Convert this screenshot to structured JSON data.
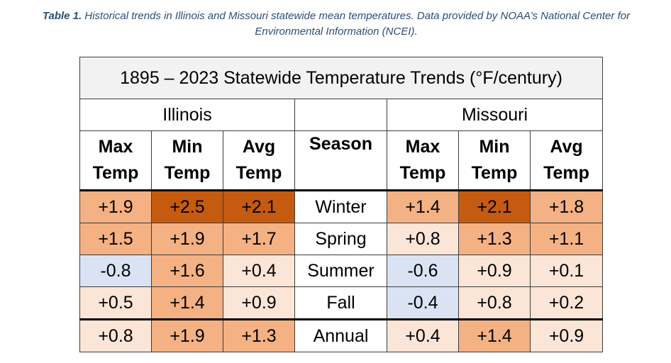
{
  "caption": {
    "label": "Table 1.",
    "text": "Historical trends in Illinois and Missouri statewide mean temperatures. Data provided by NOAA’s National Center for Environmental Information (NCEI)."
  },
  "table": {
    "title": "1895 – 2023 Statewide Temperature Trends (°F/century)",
    "state_left": "Illinois",
    "state_right": "Missouri",
    "headers": [
      {
        "l1": "Max",
        "l2": "Temp"
      },
      {
        "l1": "Min",
        "l2": "Temp"
      },
      {
        "l1": "Avg",
        "l2": "Temp"
      },
      {
        "l1": "Season",
        "l2": ""
      },
      {
        "l1": "Max",
        "l2": "Temp"
      },
      {
        "l1": "Min",
        "l2": "Temp"
      },
      {
        "l1": "Avg",
        "l2": "Temp"
      }
    ],
    "rows": [
      {
        "season": "Winter",
        "illinois": [
          "+1.9",
          "+2.5",
          "+2.1"
        ],
        "missouri": [
          "+1.4",
          "+2.1",
          "+1.8"
        ]
      },
      {
        "season": "Spring",
        "illinois": [
          "+1.5",
          "+1.9",
          "+1.7"
        ],
        "missouri": [
          "+0.8",
          "+1.3",
          "+1.1"
        ]
      },
      {
        "season": "Summer",
        "illinois": [
          "-0.8",
          "+1.6",
          "+0.4"
        ],
        "missouri": [
          "-0.6",
          "+0.9",
          "+0.1"
        ]
      },
      {
        "season": "Fall",
        "illinois": [
          "+0.5",
          "+1.4",
          "+0.9"
        ],
        "missouri": [
          "-0.4",
          "+0.8",
          "+0.2"
        ]
      },
      {
        "season": "Annual",
        "illinois": [
          "+0.8",
          "+1.9",
          "+1.3"
        ],
        "missouri": [
          "+0.4",
          "+1.4",
          "+0.9"
        ]
      }
    ]
  },
  "colors": {
    "dark_orange": "#c55a11",
    "medium_orange": "#f4b183",
    "light_orange": "#fbe5d6",
    "light_blue": "#dae3f3",
    "caption_text": "#2e4d73",
    "title_bg": "#f2f2f2"
  },
  "cell_shades": [
    [
      "medium_orange",
      "dark_orange",
      "dark_orange",
      "medium_orange",
      "dark_orange",
      "medium_orange"
    ],
    [
      "medium_orange",
      "medium_orange",
      "medium_orange",
      "light_orange",
      "medium_orange",
      "medium_orange"
    ],
    [
      "light_blue",
      "medium_orange",
      "light_orange",
      "light_blue",
      "light_orange",
      "light_orange"
    ],
    [
      "light_orange",
      "medium_orange",
      "light_orange",
      "light_blue",
      "light_orange",
      "light_orange"
    ],
    [
      "light_orange",
      "medium_orange",
      "medium_orange",
      "light_orange",
      "medium_orange",
      "light_orange"
    ]
  ]
}
